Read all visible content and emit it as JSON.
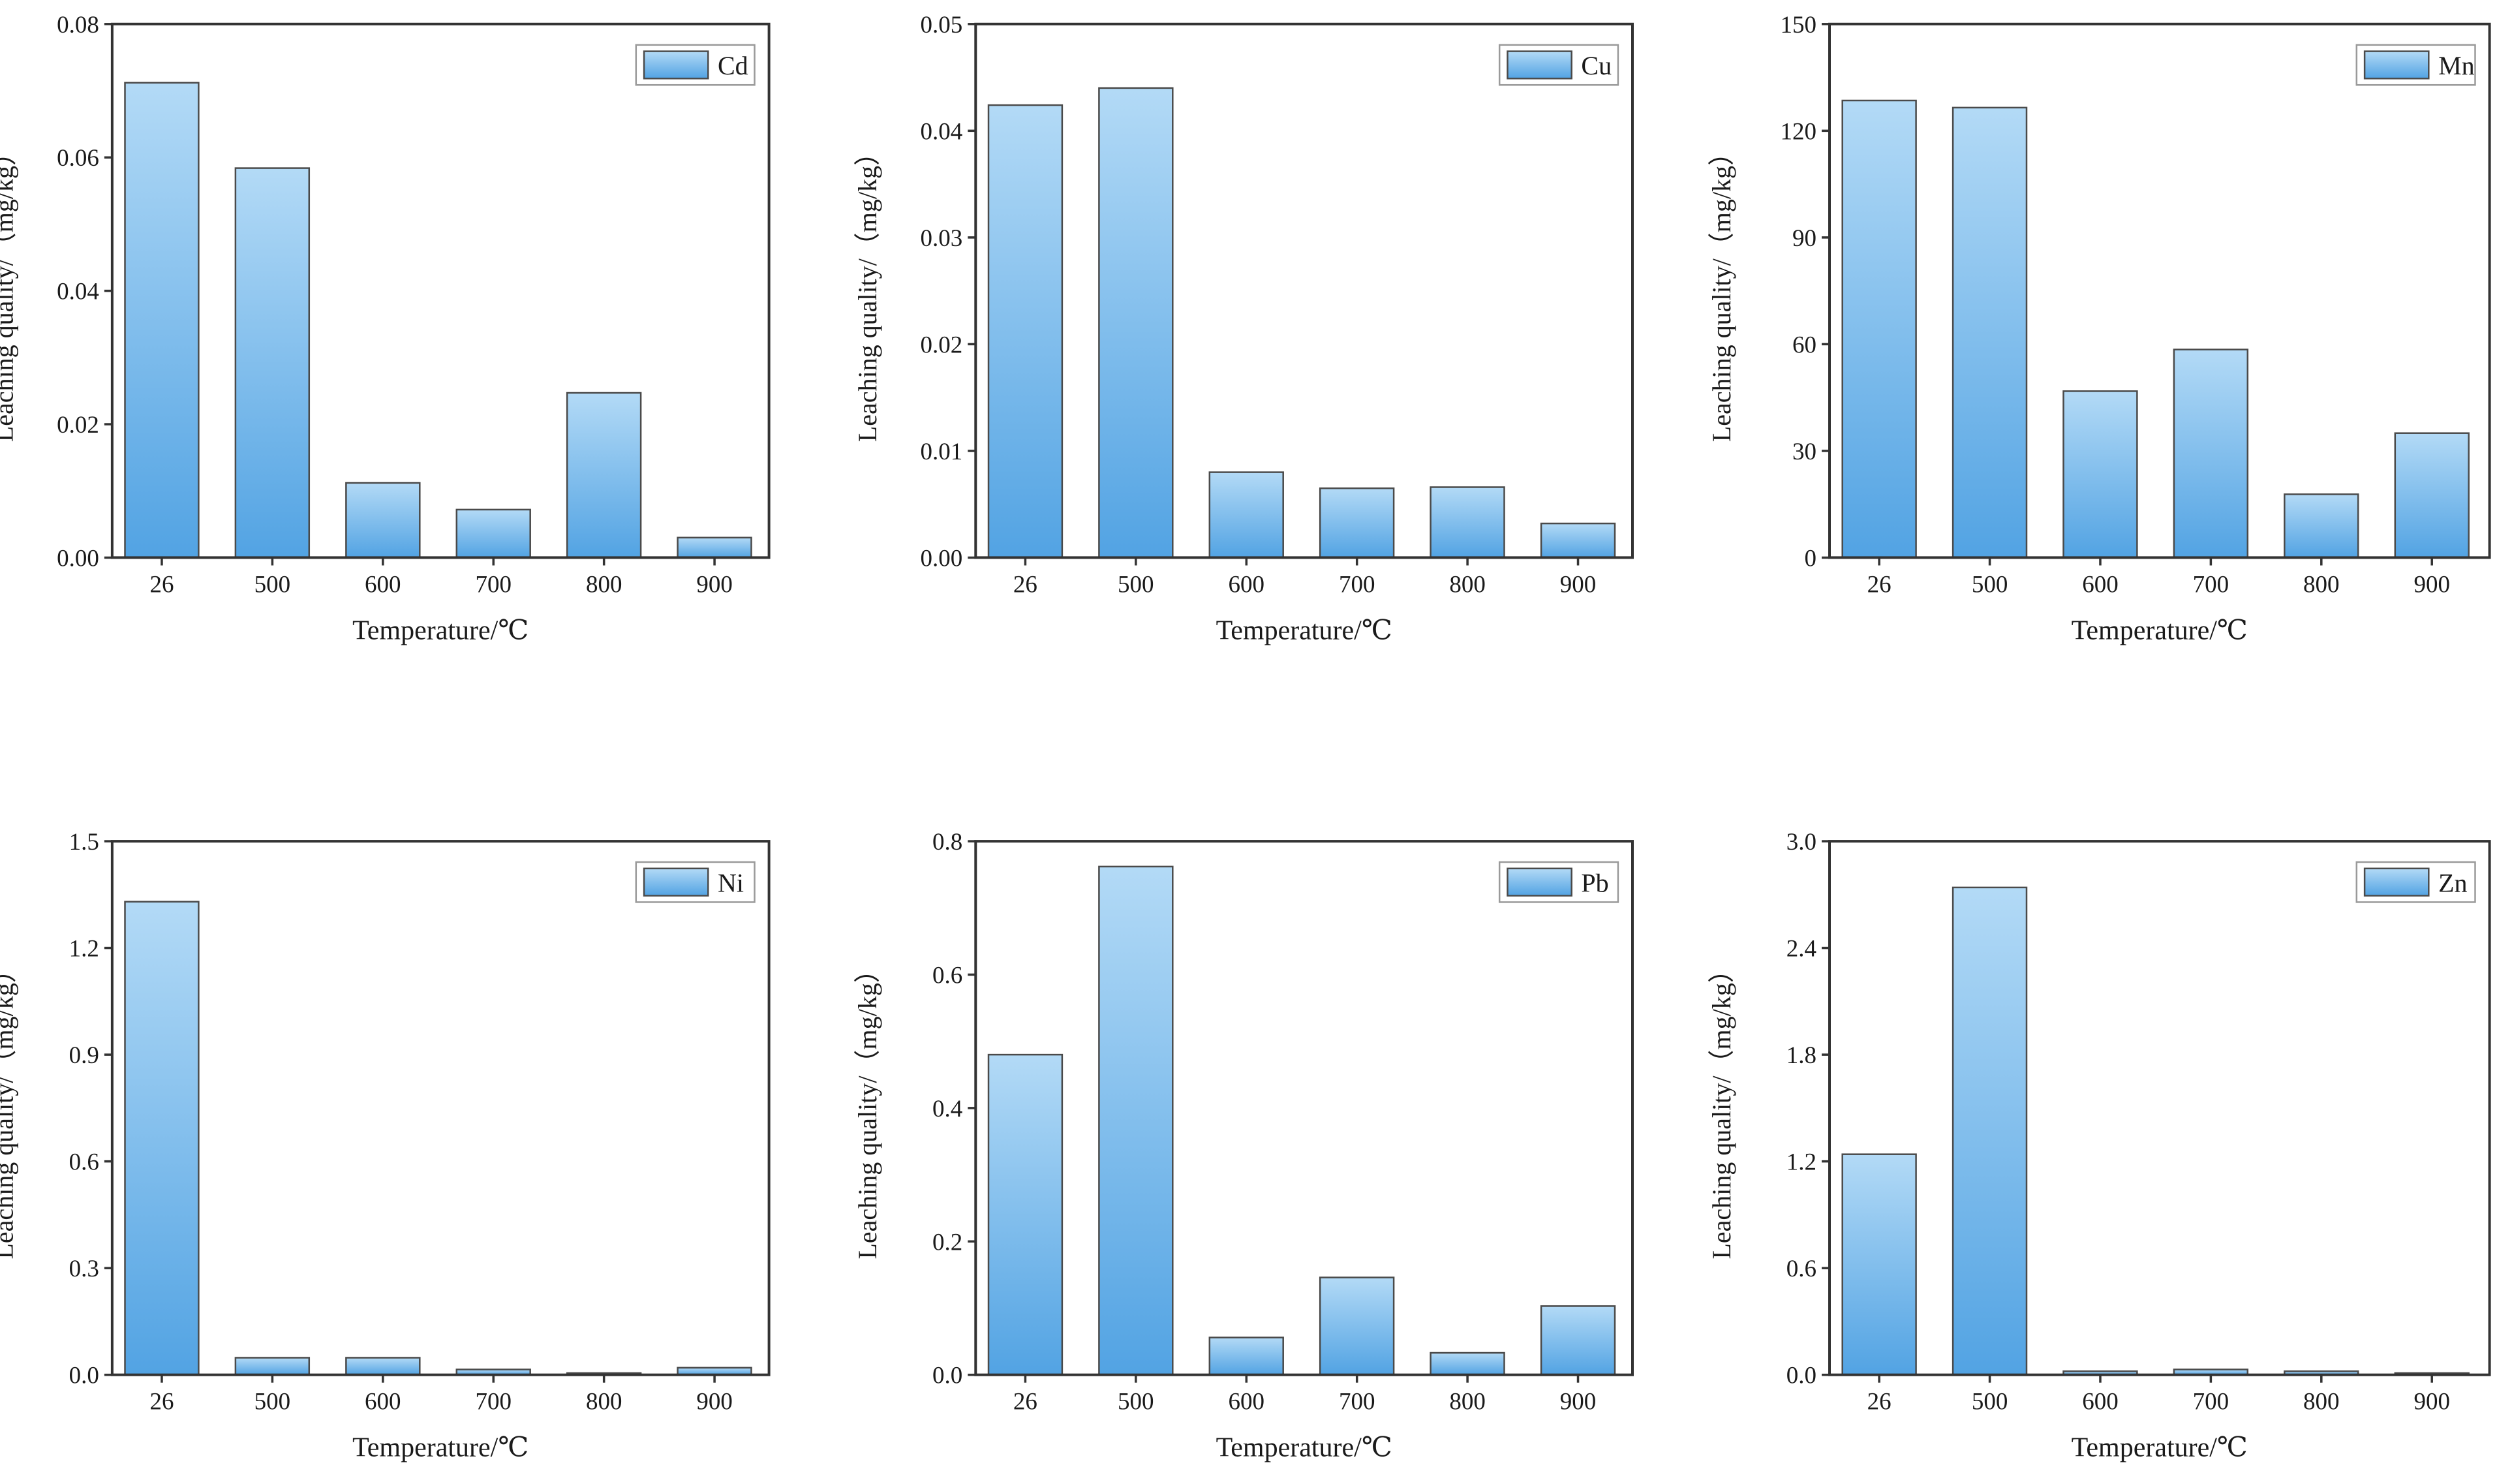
{
  "figure": {
    "colors": {
      "bar_top": "#b3daf6",
      "bar_bottom": "#52a3e3",
      "bar_edge": "#4a4a4a",
      "axis": "#333333",
      "text": "#1a1a1a"
    }
  },
  "chart_data": [
    {
      "type": "bar",
      "legend": "Cd",
      "categories": [
        "26",
        "500",
        "600",
        "700",
        "800",
        "900"
      ],
      "values": [
        0.0712,
        0.0584,
        0.0112,
        0.0072,
        0.0247,
        0.003
      ],
      "ylim": [
        0,
        0.08
      ],
      "yticks": [
        0,
        0.02,
        0.04,
        0.06,
        0.08
      ],
      "ytick_labels": [
        "0.00",
        "0.02",
        "0.04",
        "0.06",
        "0.08"
      ],
      "xlabel": "Temperature/℃",
      "ylabel": "Leaching quality/（mg/kg）"
    },
    {
      "type": "bar",
      "legend": "Cu",
      "categories": [
        "26",
        "500",
        "600",
        "700",
        "800",
        "900"
      ],
      "values": [
        0.0424,
        0.044,
        0.008,
        0.0065,
        0.0066,
        0.0032
      ],
      "ylim": [
        0,
        0.05
      ],
      "yticks": [
        0,
        0.01,
        0.02,
        0.03,
        0.04,
        0.05
      ],
      "ytick_labels": [
        "0.00",
        "0.01",
        "0.02",
        "0.03",
        "0.04",
        "0.05"
      ],
      "xlabel": "Temperature/℃",
      "ylabel": "Leaching quality/（mg/kg）"
    },
    {
      "type": "bar",
      "legend": "Mn",
      "categories": [
        "26",
        "500",
        "600",
        "700",
        "800",
        "900"
      ],
      "values": [
        128.5,
        126.5,
        46.8,
        58.5,
        17.8,
        35.0
      ],
      "ylim": [
        0,
        150
      ],
      "yticks": [
        0,
        30,
        60,
        90,
        120,
        150
      ],
      "ytick_labels": [
        "0",
        "30",
        "60",
        "90",
        "120",
        "150"
      ],
      "xlabel": "Temperature/℃",
      "ylabel": "Leaching quality/（mg/kg）"
    },
    {
      "type": "bar",
      "legend": "Ni",
      "categories": [
        "26",
        "500",
        "600",
        "700",
        "800",
        "900"
      ],
      "values": [
        1.33,
        0.048,
        0.048,
        0.015,
        0.005,
        0.02
      ],
      "ylim": [
        0,
        1.5
      ],
      "yticks": [
        0,
        0.3,
        0.6,
        0.9,
        1.2,
        1.5
      ],
      "ytick_labels": [
        "0.0",
        "0.3",
        "0.6",
        "0.9",
        "1.2",
        "1.5"
      ],
      "xlabel": "Temperature/℃",
      "ylabel": "Leaching quality/（mg/kg）"
    },
    {
      "type": "bar",
      "legend": "Pb",
      "categories": [
        "26",
        "500",
        "600",
        "700",
        "800",
        "900"
      ],
      "values": [
        0.48,
        0.762,
        0.056,
        0.146,
        0.033,
        0.103
      ],
      "ylim": [
        0,
        0.8
      ],
      "yticks": [
        0,
        0.2,
        0.4,
        0.6,
        0.8
      ],
      "ytick_labels": [
        "0.0",
        "0.2",
        "0.4",
        "0.6",
        "0.8"
      ],
      "xlabel": "Temperature/℃",
      "ylabel": "Leaching quality/（mg/kg）"
    },
    {
      "type": "bar",
      "legend": "Zn",
      "categories": [
        "26",
        "500",
        "600",
        "700",
        "800",
        "900"
      ],
      "values": [
        1.24,
        2.74,
        0.02,
        0.03,
        0.02,
        0.01
      ],
      "ylim": [
        0,
        3.0
      ],
      "yticks": [
        0,
        0.6,
        1.2,
        1.8,
        2.4,
        3.0
      ],
      "ytick_labels": [
        "0.0",
        "0.6",
        "1.2",
        "1.8",
        "2.4",
        "3.0"
      ],
      "xlabel": "Temperature/℃",
      "ylabel": "Leaching quality/（mg/kg）"
    }
  ]
}
